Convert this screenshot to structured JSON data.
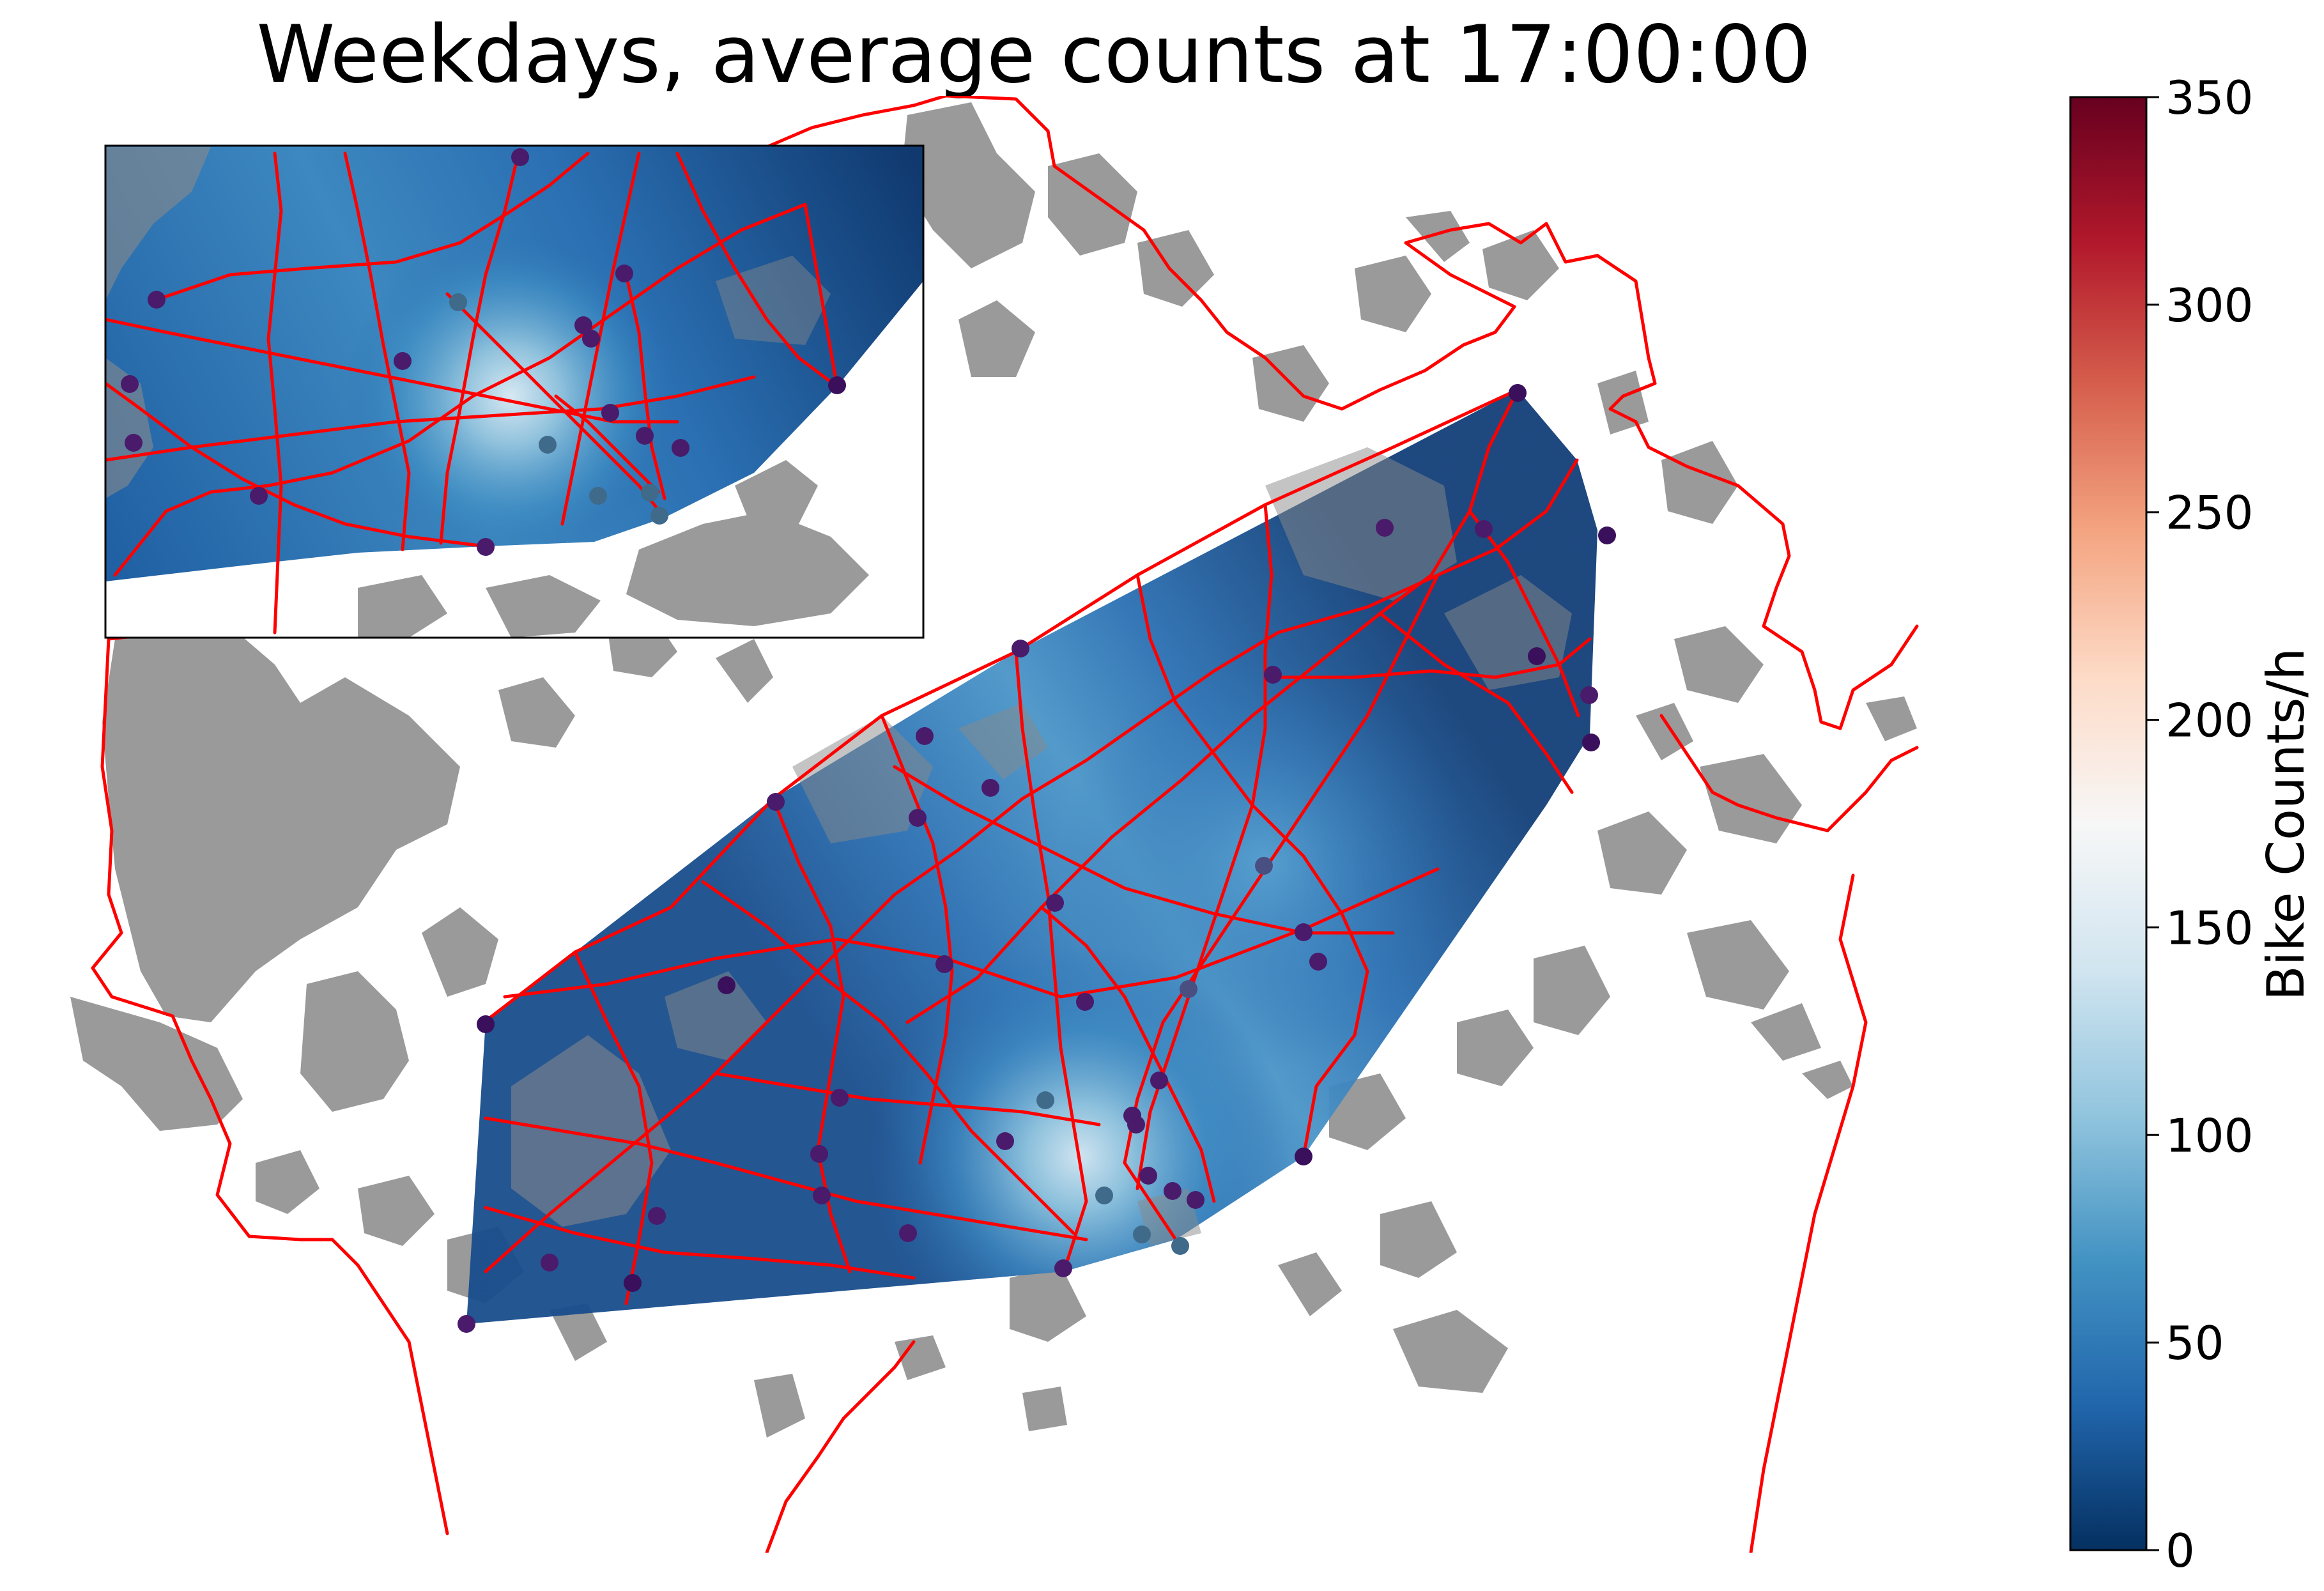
{
  "title": "Weekdays, average counts at 17:00:00",
  "colorbar": {
    "label": "Bike Counts/h",
    "min": 0,
    "max": 350,
    "ticks": [
      "0",
      "50",
      "100",
      "150",
      "200",
      "250",
      "300",
      "350"
    ],
    "colormap": "RdBu_r",
    "stops": [
      "#053061",
      "#2166ac",
      "#4393c3",
      "#92c5de",
      "#d1e5f0",
      "#f7f7f7",
      "#fddbc7",
      "#f4a582",
      "#d6604d",
      "#b2182b",
      "#67001f"
    ]
  },
  "colors": {
    "buildings": "#9a9a9a",
    "roads": "#ff0000",
    "station_low": "#3a0f5c",
    "station_mid": "#3f6a8a"
  },
  "map": {
    "layers": [
      "building-footprints",
      "bike-route-network",
      "count-stations",
      "interpolated-count-surface"
    ],
    "inset": "zoomed-view-of-city-center"
  }
}
